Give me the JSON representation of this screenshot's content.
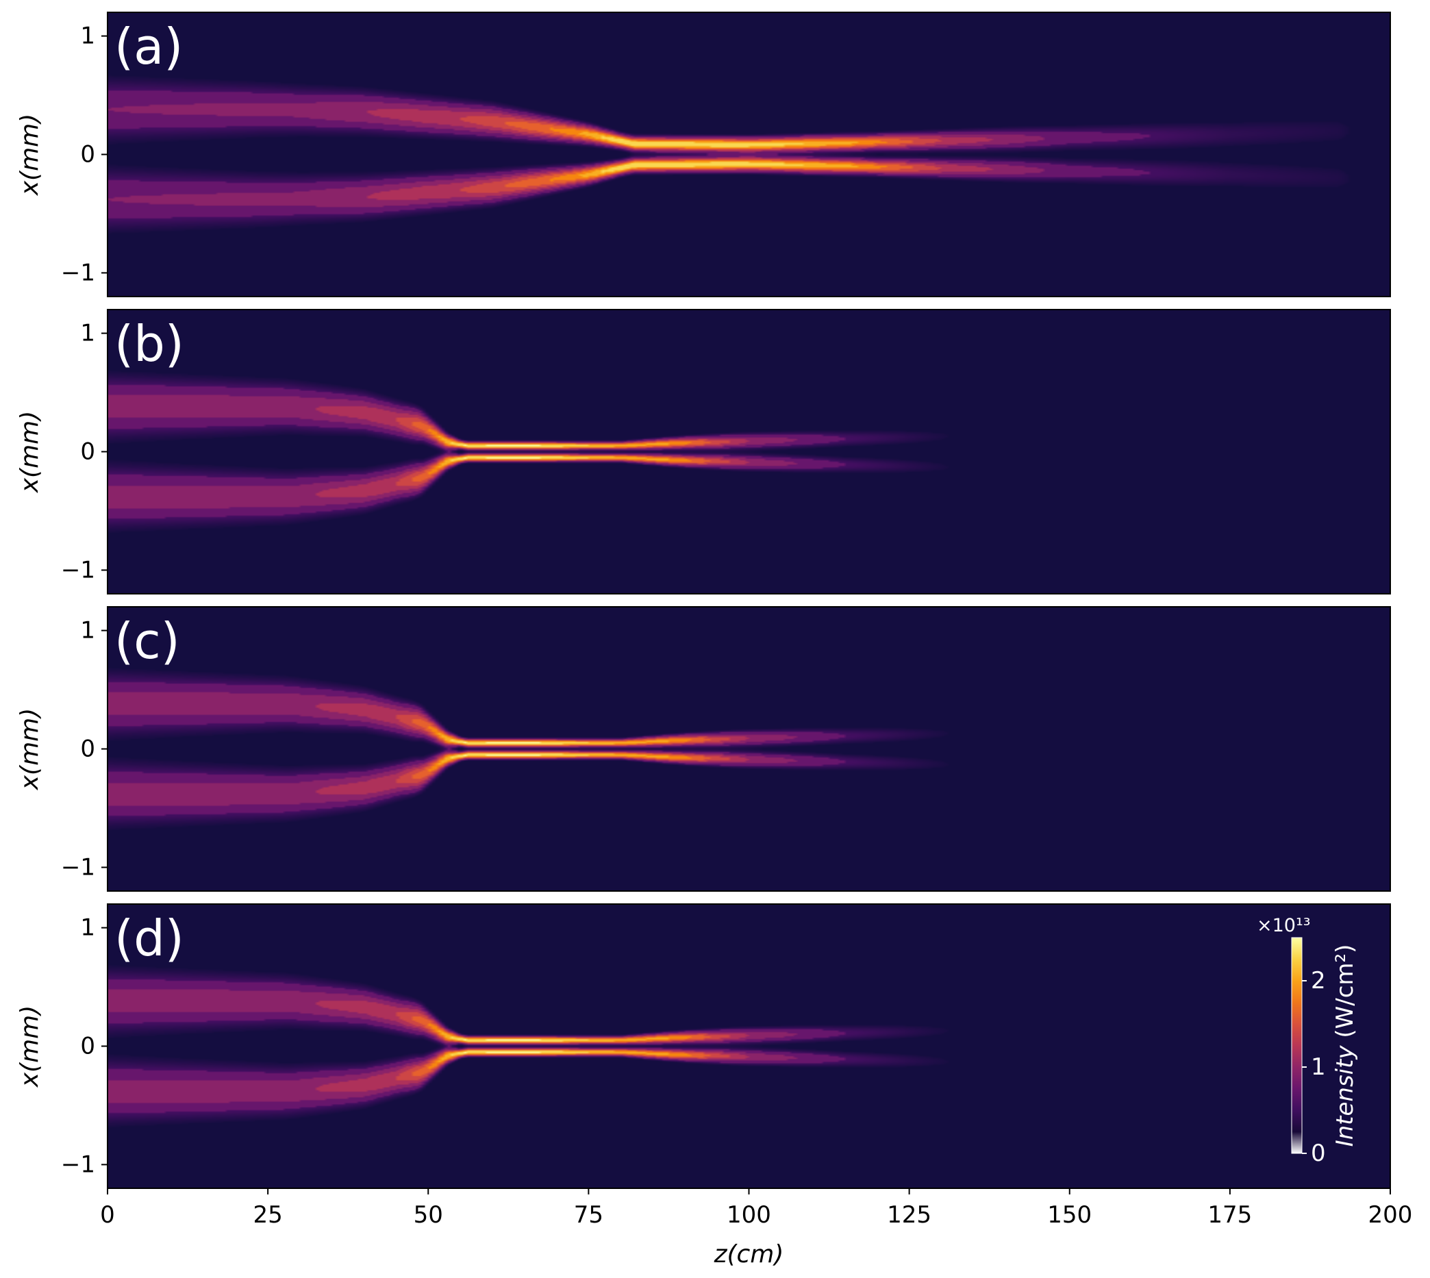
{
  "chart_data": [
    {
      "type": "heatmap",
      "panel_label": "(a)",
      "xlim": [
        0,
        200
      ],
      "ylim": [
        -1.2,
        1.2
      ],
      "ylabel": "x(mm)",
      "yticks": [
        -1,
        0,
        1
      ],
      "ytick_labels": [
        "−1",
        "0",
        "1"
      ],
      "colormap": "inferno",
      "background_color": "#140d40",
      "filaments": [
        {
          "sign": 1,
          "path": [
            [
              0,
              0.38
            ],
            [
              25,
              0.38
            ],
            [
              40,
              0.36
            ],
            [
              60,
              0.28
            ],
            [
              75,
              0.17
            ],
            [
              82,
              0.09
            ],
            [
              100,
              0.08
            ],
            [
              125,
              0.11
            ],
            [
              150,
              0.14
            ],
            [
              175,
              0.17
            ],
            [
              192,
              0.2
            ]
          ],
          "peak": [
            [
              0,
              0.25
            ],
            [
              30,
              0.28
            ],
            [
              55,
              0.45
            ],
            [
              72,
              0.7
            ],
            [
              80,
              0.95
            ],
            [
              95,
              0.95
            ],
            [
              115,
              0.8
            ],
            [
              130,
              0.45
            ],
            [
              150,
              0.2
            ],
            [
              175,
              0.1
            ],
            [
              195,
              0.06
            ]
          ],
          "width": [
            [
              0,
              0.16
            ],
            [
              30,
              0.12
            ],
            [
              60,
              0.08
            ],
            [
              80,
              0.035
            ],
            [
              120,
              0.04
            ],
            [
              160,
              0.07
            ],
            [
              195,
              0.1
            ]
          ]
        },
        {
          "sign": -1,
          "path": [
            [
              0,
              0.38
            ],
            [
              25,
              0.38
            ],
            [
              40,
              0.36
            ],
            [
              60,
              0.28
            ],
            [
              75,
              0.17
            ],
            [
              82,
              0.09
            ],
            [
              100,
              0.08
            ],
            [
              125,
              0.11
            ],
            [
              150,
              0.14
            ],
            [
              175,
              0.17
            ],
            [
              192,
              0.2
            ]
          ],
          "peak": [
            [
              0,
              0.25
            ],
            [
              30,
              0.28
            ],
            [
              55,
              0.45
            ],
            [
              72,
              0.7
            ],
            [
              80,
              0.95
            ],
            [
              95,
              0.95
            ],
            [
              115,
              0.8
            ],
            [
              130,
              0.45
            ],
            [
              150,
              0.2
            ],
            [
              175,
              0.1
            ],
            [
              195,
              0.06
            ]
          ],
          "width": [
            [
              0,
              0.16
            ],
            [
              30,
              0.12
            ],
            [
              60,
              0.08
            ],
            [
              80,
              0.035
            ],
            [
              120,
              0.04
            ],
            [
              160,
              0.07
            ],
            [
              195,
              0.1
            ]
          ]
        }
      ]
    },
    {
      "type": "heatmap",
      "panel_label": "(b)",
      "xlim": [
        0,
        200
      ],
      "ylim": [
        -1.2,
        1.2
      ],
      "ylabel": "x(mm)",
      "yticks": [
        -1,
        0,
        1
      ],
      "ytick_labels": [
        "−1",
        "0",
        "1"
      ],
      "colormap": "inferno",
      "background_color": "#140d40",
      "filaments": [
        {
          "sign": 1,
          "path": [
            [
              0,
              0.38
            ],
            [
              28,
              0.38
            ],
            [
              40,
              0.33
            ],
            [
              49,
              0.22
            ],
            [
              53,
              0.08
            ],
            [
              56,
              0.05
            ],
            [
              80,
              0.05
            ],
            [
              88,
              0.07
            ],
            [
              100,
              0.09
            ],
            [
              115,
              0.11
            ],
            [
              131,
              0.13
            ]
          ],
          "peak": [
            [
              0,
              0.3
            ],
            [
              30,
              0.33
            ],
            [
              45,
              0.45
            ],
            [
              50,
              0.65
            ],
            [
              55,
              0.95
            ],
            [
              65,
              1.0
            ],
            [
              80,
              0.8
            ],
            [
              88,
              0.75
            ],
            [
              100,
              0.35
            ],
            [
              115,
              0.15
            ],
            [
              131,
              0.05
            ]
          ],
          "width": [
            [
              0,
              0.16
            ],
            [
              30,
              0.12
            ],
            [
              48,
              0.08
            ],
            [
              55,
              0.02
            ],
            [
              80,
              0.02
            ],
            [
              100,
              0.04
            ],
            [
              131,
              0.05
            ]
          ]
        },
        {
          "sign": -1,
          "path": [
            [
              0,
              0.38
            ],
            [
              28,
              0.38
            ],
            [
              40,
              0.33
            ],
            [
              49,
              0.22
            ],
            [
              53,
              0.08
            ],
            [
              56,
              0.05
            ],
            [
              80,
              0.05
            ],
            [
              88,
              0.07
            ],
            [
              100,
              0.09
            ],
            [
              115,
              0.11
            ],
            [
              131,
              0.13
            ]
          ],
          "peak": [
            [
              0,
              0.3
            ],
            [
              30,
              0.33
            ],
            [
              45,
              0.45
            ],
            [
              50,
              0.65
            ],
            [
              55,
              0.95
            ],
            [
              65,
              1.0
            ],
            [
              80,
              0.8
            ],
            [
              88,
              0.75
            ],
            [
              100,
              0.35
            ],
            [
              115,
              0.15
            ],
            [
              131,
              0.05
            ]
          ],
          "width": [
            [
              0,
              0.16
            ],
            [
              30,
              0.12
            ],
            [
              48,
              0.08
            ],
            [
              55,
              0.02
            ],
            [
              80,
              0.02
            ],
            [
              100,
              0.04
            ],
            [
              131,
              0.05
            ]
          ]
        }
      ]
    },
    {
      "type": "heatmap",
      "panel_label": "(c)",
      "xlim": [
        0,
        200
      ],
      "ylim": [
        -1.2,
        1.2
      ],
      "ylabel": "x(mm)",
      "yticks": [
        -1,
        0,
        1
      ],
      "ytick_labels": [
        "−1",
        "0",
        "1"
      ],
      "colormap": "inferno",
      "background_color": "#140d40",
      "filaments": [
        {
          "sign": 1,
          "path": [
            [
              0,
              0.38
            ],
            [
              28,
              0.38
            ],
            [
              40,
              0.33
            ],
            [
              49,
              0.22
            ],
            [
              53,
              0.08
            ],
            [
              56,
              0.05
            ],
            [
              80,
              0.05
            ],
            [
              88,
              0.07
            ],
            [
              100,
              0.09
            ],
            [
              115,
              0.11
            ],
            [
              131,
              0.13
            ]
          ],
          "peak": [
            [
              0,
              0.3
            ],
            [
              30,
              0.33
            ],
            [
              45,
              0.45
            ],
            [
              50,
              0.65
            ],
            [
              55,
              0.95
            ],
            [
              65,
              1.0
            ],
            [
              80,
              0.8
            ],
            [
              88,
              0.75
            ],
            [
              100,
              0.35
            ],
            [
              115,
              0.15
            ],
            [
              131,
              0.05
            ]
          ],
          "width": [
            [
              0,
              0.16
            ],
            [
              30,
              0.12
            ],
            [
              48,
              0.08
            ],
            [
              55,
              0.02
            ],
            [
              80,
              0.02
            ],
            [
              100,
              0.04
            ],
            [
              131,
              0.05
            ]
          ]
        },
        {
          "sign": -1,
          "path": [
            [
              0,
              0.38
            ],
            [
              28,
              0.38
            ],
            [
              40,
              0.33
            ],
            [
              49,
              0.22
            ],
            [
              53,
              0.08
            ],
            [
              56,
              0.05
            ],
            [
              80,
              0.05
            ],
            [
              88,
              0.07
            ],
            [
              100,
              0.09
            ],
            [
              115,
              0.11
            ],
            [
              131,
              0.13
            ]
          ],
          "peak": [
            [
              0,
              0.3
            ],
            [
              30,
              0.33
            ],
            [
              45,
              0.45
            ],
            [
              50,
              0.65
            ],
            [
              55,
              0.95
            ],
            [
              65,
              1.0
            ],
            [
              80,
              0.8
            ],
            [
              88,
              0.75
            ],
            [
              100,
              0.35
            ],
            [
              115,
              0.15
            ],
            [
              131,
              0.05
            ]
          ],
          "width": [
            [
              0,
              0.16
            ],
            [
              30,
              0.12
            ],
            [
              48,
              0.08
            ],
            [
              55,
              0.02
            ],
            [
              80,
              0.02
            ],
            [
              100,
              0.04
            ],
            [
              131,
              0.05
            ]
          ]
        }
      ]
    },
    {
      "type": "heatmap",
      "panel_label": "(d)",
      "xlim": [
        0,
        200
      ],
      "ylim": [
        -1.2,
        1.2
      ],
      "ylabel": "x(mm)",
      "yticks": [
        -1,
        0,
        1
      ],
      "ytick_labels": [
        "−1",
        "0",
        "1"
      ],
      "xlabel": "z(cm)",
      "xticks": [
        0,
        25,
        50,
        75,
        100,
        125,
        150,
        175,
        200
      ],
      "colormap": "inferno",
      "background_color": "#140d40",
      "filaments": [
        {
          "sign": 1,
          "path": [
            [
              0,
              0.38
            ],
            [
              28,
              0.38
            ],
            [
              40,
              0.33
            ],
            [
              49,
              0.22
            ],
            [
              53,
              0.08
            ],
            [
              56,
              0.05
            ],
            [
              80,
              0.05
            ],
            [
              88,
              0.07
            ],
            [
              100,
              0.09
            ],
            [
              115,
              0.11
            ],
            [
              131,
              0.13
            ]
          ],
          "peak": [
            [
              0,
              0.3
            ],
            [
              30,
              0.33
            ],
            [
              45,
              0.45
            ],
            [
              50,
              0.65
            ],
            [
              55,
              0.95
            ],
            [
              65,
              1.0
            ],
            [
              80,
              0.8
            ],
            [
              88,
              0.75
            ],
            [
              100,
              0.35
            ],
            [
              115,
              0.15
            ],
            [
              131,
              0.05
            ]
          ],
          "width": [
            [
              0,
              0.16
            ],
            [
              30,
              0.12
            ],
            [
              48,
              0.08
            ],
            [
              55,
              0.02
            ],
            [
              80,
              0.02
            ],
            [
              100,
              0.04
            ],
            [
              131,
              0.05
            ]
          ]
        },
        {
          "sign": -1,
          "path": [
            [
              0,
              0.38
            ],
            [
              28,
              0.38
            ],
            [
              40,
              0.33
            ],
            [
              49,
              0.22
            ],
            [
              53,
              0.08
            ],
            [
              56,
              0.05
            ],
            [
              80,
              0.05
            ],
            [
              88,
              0.07
            ],
            [
              100,
              0.09
            ],
            [
              115,
              0.11
            ],
            [
              131,
              0.13
            ]
          ],
          "peak": [
            [
              0,
              0.3
            ],
            [
              30,
              0.33
            ],
            [
              45,
              0.45
            ],
            [
              50,
              0.65
            ],
            [
              55,
              0.95
            ],
            [
              65,
              1.0
            ],
            [
              80,
              0.8
            ],
            [
              88,
              0.75
            ],
            [
              100,
              0.35
            ],
            [
              115,
              0.15
            ],
            [
              131,
              0.05
            ]
          ],
          "width": [
            [
              0,
              0.16
            ],
            [
              30,
              0.12
            ],
            [
              48,
              0.08
            ],
            [
              55,
              0.02
            ],
            [
              80,
              0.02
            ],
            [
              100,
              0.04
            ],
            [
              131,
              0.05
            ]
          ]
        }
      ],
      "colorbar": {
        "label": "Intensity (W/cm²)",
        "label_italic_part": "Intensity",
        "label_unit_part": " (W/cm²)",
        "multiplier": "×10¹³",
        "range": [
          0,
          2.5
        ],
        "ticks": [
          0,
          1,
          2
        ],
        "tick_labels": [
          "0",
          "1",
          "2"
        ],
        "text_color": "#ffffff"
      }
    }
  ]
}
